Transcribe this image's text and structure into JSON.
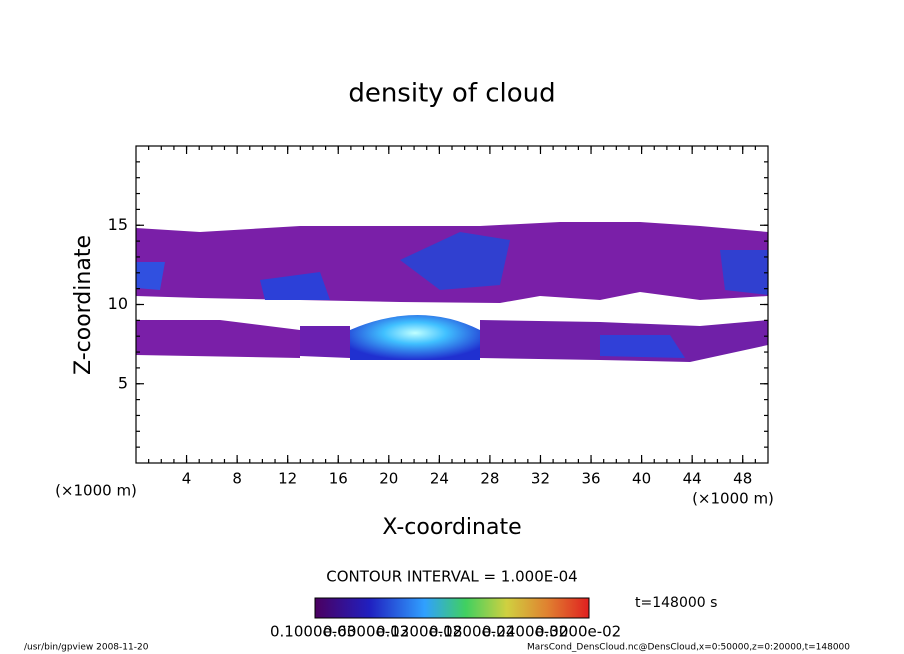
{
  "chart_data": {
    "type": "contour",
    "title": "density of cloud",
    "x_label": "X-coordinate",
    "y_label": "Z-coordinate",
    "x_unit_left": "(×1000 m)",
    "x_unit_right": "(×1000 m)",
    "xlim": [
      0,
      50
    ],
    "ylim": [
      0,
      20
    ],
    "xticks": [
      4,
      8,
      12,
      16,
      20,
      24,
      28,
      32,
      36,
      40,
      44,
      48
    ],
    "yticks": [
      5,
      10,
      15
    ],
    "contour_interval": "CONTOUR INTERVAL = 1.000E-04",
    "time_label": "t=148000 s",
    "colorbar_labels": [
      "0.1000e-03",
      "0.6000e-03",
      "0.1200e-02",
      "0.1800e-02",
      "0.2400e-02",
      "0.3000e-02"
    ],
    "footer_left": "/usr/bin/gpview   2008-11-20",
    "footer_right": "MarsCond_DensCloud.nc@DensCloud,x=0:50000,z=0:20000,t=148000"
  }
}
